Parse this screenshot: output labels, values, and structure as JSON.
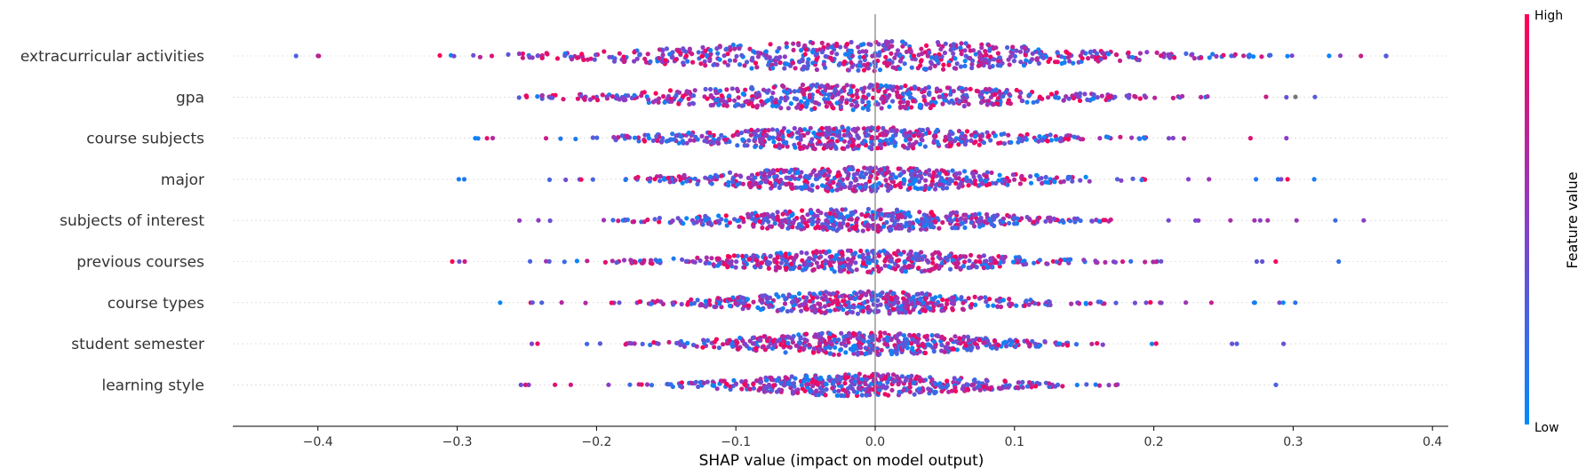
{
  "chart_data": {
    "type": "scatter",
    "subtype": "shap-beeswarm-summary",
    "features": [
      {
        "name": "extracurricular activities",
        "min": -0.42,
        "max": 0.37,
        "spread": 0.115,
        "peak": -0.01,
        "n": 650,
        "width": 1.0
      },
      {
        "name": "gpa",
        "min": -0.26,
        "max": 0.32,
        "spread": 0.1,
        "peak": -0.02,
        "n": 600,
        "width": 0.85,
        "gray_range": [
          0.27,
          0.32
        ]
      },
      {
        "name": "course subjects",
        "min": -0.3,
        "max": 0.32,
        "spread": 0.085,
        "peak": -0.02,
        "n": 540,
        "width": 0.75
      },
      {
        "name": "major",
        "min": -0.31,
        "max": 0.33,
        "spread": 0.08,
        "peak": -0.01,
        "n": 540,
        "width": 0.8
      },
      {
        "name": "subjects of interest",
        "min": -0.27,
        "max": 0.36,
        "spread": 0.075,
        "peak": -0.01,
        "n": 520,
        "width": 0.75
      },
      {
        "name": "previous courses",
        "min": -0.31,
        "max": 0.36,
        "spread": 0.075,
        "peak": -0.01,
        "n": 520,
        "width": 0.75
      },
      {
        "name": "course types",
        "min": -0.28,
        "max": 0.31,
        "spread": 0.07,
        "peak": -0.01,
        "n": 500,
        "width": 0.75
      },
      {
        "name": "student semester",
        "min": -0.27,
        "max": 0.31,
        "spread": 0.07,
        "peak": -0.01,
        "n": 500,
        "width": 0.75
      },
      {
        "name": "learning style",
        "min": -0.26,
        "max": 0.29,
        "spread": 0.065,
        "peak": -0.01,
        "n": 480,
        "width": 0.75
      }
    ],
    "x_ticks": [
      "−0.4",
      "−0.3",
      "−0.2",
      "−0.1",
      "0.0",
      "0.1",
      "0.2",
      "0.3",
      "0.4"
    ],
    "x_tick_values": [
      -0.4,
      -0.3,
      -0.2,
      -0.1,
      0.0,
      0.1,
      0.2,
      0.3,
      0.4
    ],
    "xlim": [
      -0.46,
      0.415
    ],
    "xlabel": "SHAP value (impact on model output)",
    "colorbar": {
      "label": "Feature value",
      "high": "High",
      "low": "Low",
      "low_color": "#008bfb",
      "high_color": "#ff0052"
    },
    "grid": false,
    "legend": "colorbar-right"
  }
}
